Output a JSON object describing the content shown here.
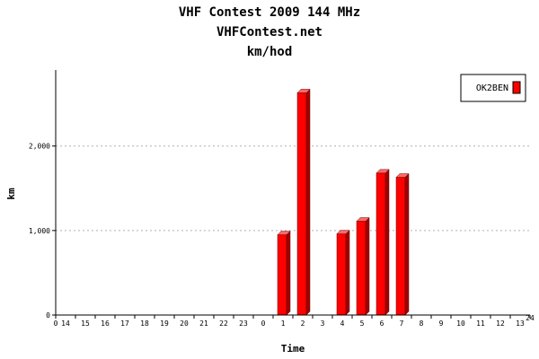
{
  "titles": {
    "line1": "VHF Contest 2009 144 MHz",
    "line2": "VHFContest.net",
    "line3": "km/hod"
  },
  "colors": {
    "bar_front": "#ff0000",
    "bar_side": "#a00000",
    "bar_top": "#ff6a6a",
    "grid": "#b0b0b0"
  },
  "chart_data": {
    "type": "bar",
    "title": "VHF Contest 2009 144 MHz",
    "subtitle": "VHFContest.net",
    "xlabel": "Time",
    "ylabel": "km",
    "ylim": [
      0,
      2900
    ],
    "yticks": [
      0,
      1000,
      2000
    ],
    "ytick_labels": [
      "0",
      "1,000",
      "2,000"
    ],
    "grid": "horizontal dashed",
    "legend_position": "top-right",
    "categories": [
      "14",
      "15",
      "16",
      "17",
      "18",
      "19",
      "20",
      "21",
      "22",
      "23",
      "0",
      "1",
      "2",
      "3",
      "4",
      "5",
      "6",
      "7",
      "8",
      "9",
      "10",
      "11",
      "12",
      "13"
    ],
    "x_end_labels": [
      "0",
      "24"
    ],
    "series": [
      {
        "name": "OK2BEN",
        "values": [
          0,
          0,
          0,
          0,
          0,
          0,
          0,
          0,
          0,
          0,
          0,
          950,
          2630,
          0,
          960,
          1110,
          1680,
          1630,
          0,
          0,
          0,
          0,
          0,
          0
        ]
      }
    ]
  }
}
